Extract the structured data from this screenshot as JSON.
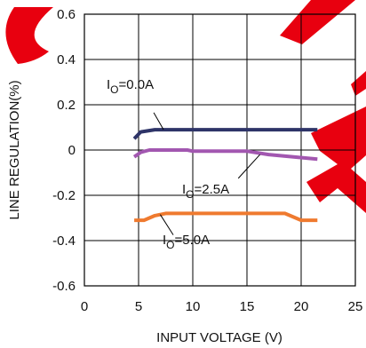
{
  "chart_data": {
    "type": "line",
    "xlabel": "INPUT VOLTAGE (V)",
    "ylabel": "LINE REGULATION(%)",
    "xlim": [
      0,
      25
    ],
    "ylim": [
      -0.6,
      0.6
    ],
    "x_ticks": [
      0,
      5,
      10,
      15,
      20,
      25
    ],
    "y_ticks": [
      0.6,
      0.4,
      0.2,
      0,
      -0.2,
      -0.4,
      -0.6
    ],
    "grid": true,
    "series": [
      {
        "name": "IO=0.0A",
        "color": "#2e3468",
        "points": [
          [
            4.6,
            0.05
          ],
          [
            5.2,
            0.08
          ],
          [
            6.5,
            0.09
          ],
          [
            21.5,
            0.09
          ]
        ]
      },
      {
        "name": "IO=2.5A",
        "color": "#a257b0",
        "points": [
          [
            4.6,
            -0.03
          ],
          [
            5.2,
            -0.01
          ],
          [
            6.0,
            0.0
          ],
          [
            9.5,
            0.0
          ],
          [
            10.0,
            -0.005
          ],
          [
            15.0,
            -0.005
          ],
          [
            17.0,
            -0.02
          ],
          [
            21.5,
            -0.04
          ]
        ]
      },
      {
        "name": "IO=5.0A",
        "color": "#ef7a2f",
        "points": [
          [
            4.6,
            -0.31
          ],
          [
            5.5,
            -0.31
          ],
          [
            6.5,
            -0.29
          ],
          [
            7.5,
            -0.28
          ],
          [
            17.0,
            -0.28
          ],
          [
            18.5,
            -0.28
          ],
          [
            20.0,
            -0.31
          ],
          [
            21.5,
            -0.31
          ]
        ]
      }
    ],
    "annotations": [
      {
        "label_base": "I",
        "label_sub": "O",
        "label_rest": "=0.0A",
        "series": 0
      },
      {
        "label_base": "I",
        "label_sub": "O",
        "label_rest": "=2.5A",
        "series": 1
      },
      {
        "label_base": "I",
        "label_sub": "O",
        "label_rest": "=5.0A",
        "series": 2
      }
    ]
  }
}
